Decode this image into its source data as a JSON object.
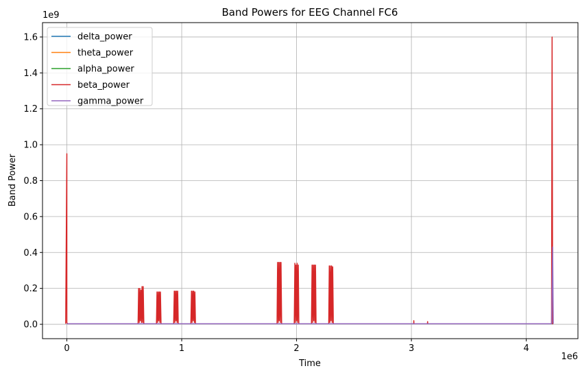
{
  "chart_data": {
    "type": "line",
    "title": "Band Powers for EEG Channel FC6",
    "xlabel": "Time",
    "ylabel": "Band Power",
    "x_offset_label": "1e6",
    "y_offset_label": "1e9",
    "xlim": [
      -0.212,
      4.45
    ],
    "ylim": [
      -0.08,
      1.68
    ],
    "x_ticks": [
      0,
      1,
      2,
      3,
      4
    ],
    "x_tick_labels": [
      "0",
      "1",
      "2",
      "3",
      "4"
    ],
    "y_ticks": [
      0.0,
      0.2,
      0.4,
      0.6,
      0.8,
      1.0,
      1.2,
      1.4,
      1.6
    ],
    "y_tick_labels": [
      "0.0",
      "0.2",
      "0.4",
      "0.6",
      "0.8",
      "1.0",
      "1.2",
      "1.4",
      "1.6"
    ],
    "grid": true,
    "legend_position": "top-left",
    "series": [
      {
        "name": "delta_power",
        "color": "#1f77b4",
        "x": [
          0,
          4.23
        ],
        "y": [
          0.003,
          0.003
        ]
      },
      {
        "name": "theta_power",
        "color": "#ff7f0e",
        "x": [
          0,
          4.23
        ],
        "y": [
          0.003,
          0.003
        ]
      },
      {
        "name": "alpha_power",
        "color": "#2ca02c",
        "x": [
          0,
          4.23
        ],
        "y": [
          0.003,
          0.003
        ]
      },
      {
        "name": "beta_power",
        "color": "#d62728",
        "x": [
          -0.01,
          0.0,
          0.0,
          0.005,
          0.01,
          0.62,
          0.625,
          0.63,
          0.635,
          0.64,
          0.645,
          0.65,
          0.655,
          0.66,
          0.665,
          0.67,
          0.78,
          0.785,
          0.79,
          0.795,
          0.8,
          0.805,
          0.81,
          0.815,
          0.82,
          0.93,
          0.935,
          0.94,
          0.945,
          0.95,
          0.955,
          0.96,
          0.965,
          0.97,
          1.08,
          1.085,
          1.09,
          1.095,
          1.1,
          1.105,
          1.11,
          1.115,
          1.12,
          1.83,
          1.835,
          1.84,
          1.845,
          1.85,
          1.855,
          1.86,
          1.865,
          1.87,
          1.98,
          1.985,
          1.99,
          1.995,
          2.0,
          2.005,
          2.01,
          2.015,
          2.02,
          2.13,
          2.135,
          2.14,
          2.145,
          2.15,
          2.155,
          2.16,
          2.165,
          2.17,
          2.28,
          2.285,
          2.29,
          2.295,
          2.3,
          2.305,
          2.31,
          2.315,
          2.32,
          3.02,
          3.021,
          3.022,
          3.14,
          3.141,
          3.142,
          4.22,
          4.225,
          4.23,
          4.235
        ],
        "y": [
          0.003,
          0.95,
          0.01,
          0.003,
          0.003,
          0.003,
          0.2,
          0.01,
          0.2,
          0.02,
          0.19,
          0.01,
          0.21,
          0.01,
          0.21,
          0.003,
          0.003,
          0.18,
          0.01,
          0.18,
          0.02,
          0.18,
          0.01,
          0.18,
          0.003,
          0.003,
          0.185,
          0.01,
          0.185,
          0.02,
          0.185,
          0.01,
          0.185,
          0.003,
          0.003,
          0.185,
          0.01,
          0.185,
          0.02,
          0.185,
          0.01,
          0.18,
          0.003,
          0.003,
          0.345,
          0.01,
          0.345,
          0.02,
          0.345,
          0.01,
          0.345,
          0.003,
          0.003,
          0.34,
          0.01,
          0.33,
          0.02,
          0.34,
          0.01,
          0.33,
          0.003,
          0.003,
          0.33,
          0.01,
          0.33,
          0.02,
          0.33,
          0.01,
          0.33,
          0.003,
          0.003,
          0.325,
          0.01,
          0.325,
          0.02,
          0.325,
          0.01,
          0.32,
          0.003,
          0.003,
          0.02,
          0.003,
          0.003,
          0.015,
          0.003,
          0.003,
          1.6,
          0.003,
          0.003
        ]
      },
      {
        "name": "gamma_power",
        "color": "#9467bd",
        "x": [
          0,
          4.22,
          4.23,
          4.235
        ],
        "y": [
          0.003,
          0.003,
          0.43,
          0.003
        ]
      }
    ]
  }
}
